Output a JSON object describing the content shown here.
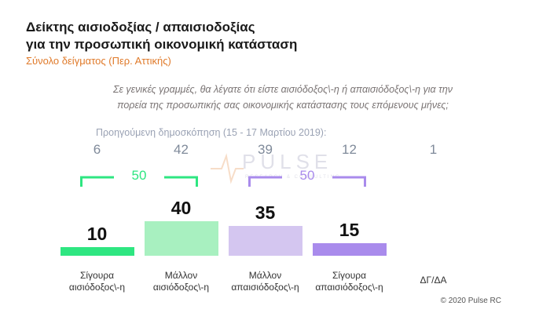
{
  "header": {
    "title_line1": "Δείκτης αισιοδοξίας / απαισιοδοξίας",
    "title_line2": "για την προσωπική οικονομική κατάσταση",
    "subtitle": "Σύνολο δείγματος (Περ. Αττικής)"
  },
  "question": {
    "line1": "Σε γενικές γραμμές, θα λέγατε ότι είστε αισιόδοξος\\-η ή απαισιόδοξος\\-η για την",
    "line2": "πορεία της προσωπικής σας οικονομικής κατάστασης τους επόμενους μήνες;"
  },
  "previous_label": "Προηγούμενη δημοσκόπηση (15 - 17  Μαρτίου  2019):",
  "watermark": {
    "brand": "PULSE",
    "tagline": "RESEARCH & CONSULTING"
  },
  "footer": "© 2020 Pulse RC",
  "colors": {
    "bar1": "#2ee681",
    "bar2": "#a8f0c0",
    "bar3": "#d4c6f0",
    "bar4": "#a98bec",
    "group_green": "#2ee681",
    "group_purple": "#a98bec",
    "subtitle": "#e07a2a"
  },
  "chart_data": {
    "type": "bar",
    "categories": [
      "Σίγουρα\nαισιόδοξος\\-η",
      "Μάλλον\nαισιόδοξος\\-η",
      "Μάλλον\nαπαισιόδοξος\\-η",
      "Σίγουρα\nαπαισιόδοξος\\-η",
      "ΔΓ/ΔΑ"
    ],
    "values": [
      10,
      40,
      35,
      15,
      null
    ],
    "previous_values": [
      6,
      42,
      39,
      12,
      1
    ],
    "groups": [
      {
        "value": 50,
        "members": [
          0,
          1
        ],
        "color": "#2ee681"
      },
      {
        "value": 50,
        "members": [
          2,
          3
        ],
        "color": "#a98bec"
      }
    ],
    "ylim": [
      0,
      100
    ],
    "grid": false
  }
}
